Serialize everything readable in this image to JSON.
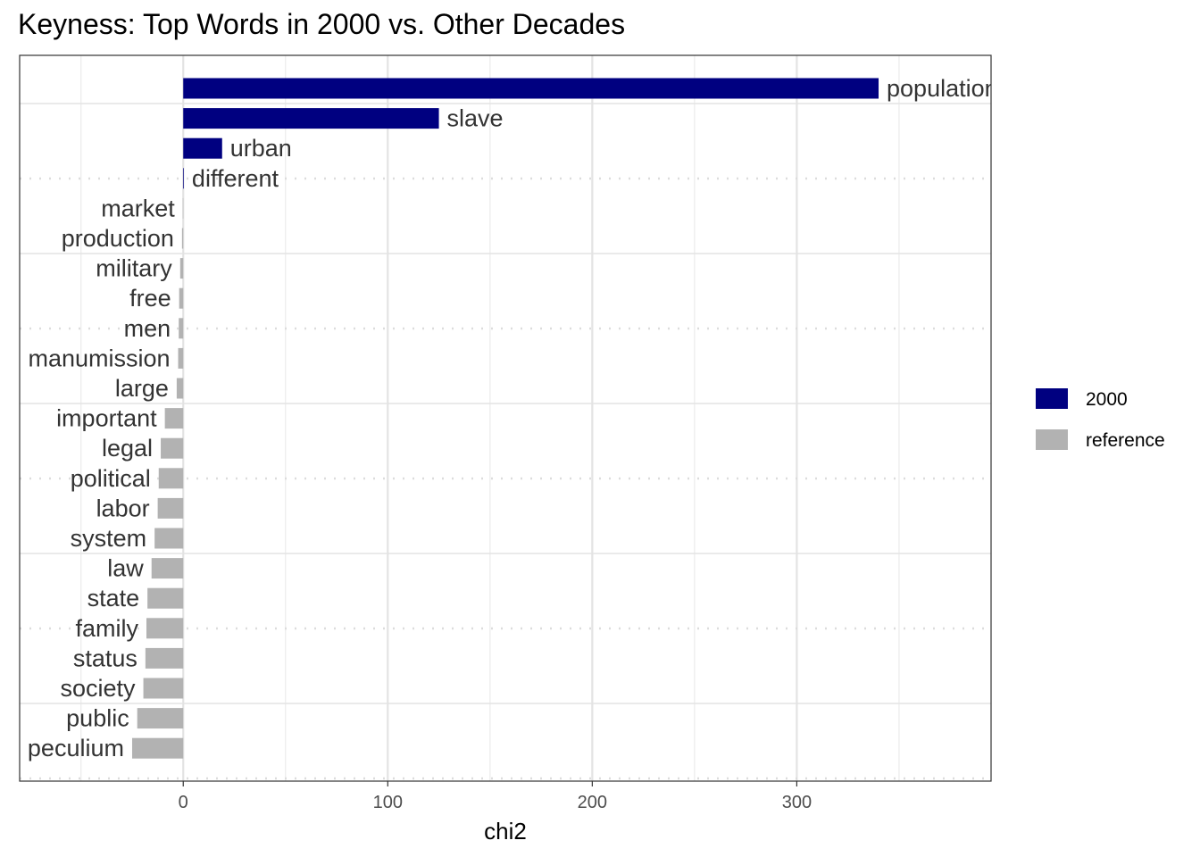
{
  "chart_data": {
    "type": "bar",
    "orientation": "horizontal",
    "title": "Keyness: Top Words in 2000 vs. Other Decades",
    "xlabel": "chi2",
    "ylabel": "",
    "xlim": [
      -80,
      395
    ],
    "xticks": [
      0,
      100,
      200,
      300
    ],
    "grid": true,
    "legend_position": "right",
    "legend": [
      {
        "name": "2000",
        "color": "#000080"
      },
      {
        "name": "reference",
        "color": "#b2b2b2"
      }
    ],
    "categories": [
      "population",
      "slave",
      "urban",
      "different",
      "market",
      "production",
      "military",
      "free",
      "men",
      "manumission",
      "large",
      "important",
      "legal",
      "political",
      "labor",
      "system",
      "law",
      "state",
      "family",
      "status",
      "society",
      "public",
      "peculium"
    ],
    "values": [
      340,
      125,
      19,
      0.3,
      -0.2,
      -0.6,
      -1.5,
      -2,
      -2.2,
      -2.5,
      -3.2,
      -9,
      -11,
      -12,
      -12.5,
      -14,
      -15.5,
      -17.5,
      -18,
      -18.5,
      -19.5,
      -22.5,
      -25
    ],
    "groups": [
      "2000",
      "2000",
      "2000",
      "2000",
      "reference",
      "reference",
      "reference",
      "reference",
      "reference",
      "reference",
      "reference",
      "reference",
      "reference",
      "reference",
      "reference",
      "reference",
      "reference",
      "reference",
      "reference",
      "reference",
      "reference",
      "reference",
      "reference"
    ]
  }
}
